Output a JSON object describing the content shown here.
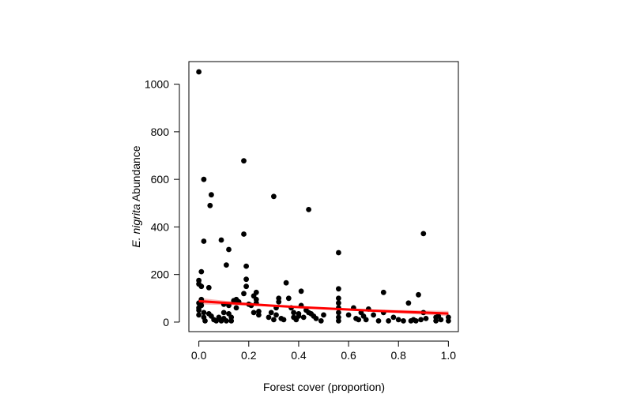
{
  "chart_data": {
    "type": "scatter",
    "title": "",
    "xlabel": "Forest cover (proportion)",
    "ylabel_italic": "E. nigrita",
    "ylabel_rest": " Abundance",
    "xlim": [
      -0.04,
      1.04
    ],
    "ylim": [
      -40,
      1095
    ],
    "xticks": [
      0.0,
      0.2,
      0.4,
      0.6,
      0.8,
      1.0
    ],
    "xtick_labels": [
      "0.0",
      "0.2",
      "0.4",
      "0.6",
      "0.8",
      "1.0"
    ],
    "yticks": [
      0,
      200,
      400,
      600,
      800,
      1000
    ],
    "ytick_labels": [
      "0",
      "200",
      "400",
      "600",
      "800",
      "1000"
    ],
    "grid": false,
    "point_color": "#000000",
    "fit_color": "#ff0000",
    "band_color": "#f4a3a3",
    "fit_line": {
      "x": [
        0.0,
        0.1,
        0.2,
        0.3,
        0.4,
        0.5,
        0.6,
        0.7,
        0.8,
        0.9,
        1.0
      ],
      "y": [
        88,
        81,
        75,
        69,
        63,
        58,
        53,
        48,
        44,
        40,
        36
      ],
      "lower": [
        74,
        72,
        69,
        65,
        60,
        55,
        49,
        43,
        37,
        31,
        25
      ],
      "upper": [
        102,
        90,
        81,
        73,
        66,
        61,
        57,
        53,
        51,
        49,
        47
      ]
    },
    "points": [
      [
        0.0,
        1052
      ],
      [
        0.0,
        175
      ],
      [
        0.0,
        160
      ],
      [
        0.0,
        80
      ],
      [
        0.0,
        60
      ],
      [
        0.0,
        50
      ],
      [
        0.0,
        30
      ],
      [
        0.01,
        212
      ],
      [
        0.01,
        150
      ],
      [
        0.01,
        95
      ],
      [
        0.01,
        85
      ],
      [
        0.01,
        70
      ],
      [
        0.02,
        600
      ],
      [
        0.02,
        340
      ],
      [
        0.02,
        40
      ],
      [
        0.02,
        20
      ],
      [
        0.025,
        5
      ],
      [
        0.04,
        145
      ],
      [
        0.04,
        35
      ],
      [
        0.045,
        490
      ],
      [
        0.05,
        535
      ],
      [
        0.05,
        25
      ],
      [
        0.06,
        10
      ],
      [
        0.07,
        5
      ],
      [
        0.08,
        20
      ],
      [
        0.09,
        345
      ],
      [
        0.09,
        5
      ],
      [
        0.1,
        75
      ],
      [
        0.1,
        40
      ],
      [
        0.1,
        15
      ],
      [
        0.11,
        240
      ],
      [
        0.11,
        5
      ],
      [
        0.12,
        305
      ],
      [
        0.12,
        70
      ],
      [
        0.12,
        35
      ],
      [
        0.13,
        20
      ],
      [
        0.13,
        5
      ],
      [
        0.14,
        90
      ],
      [
        0.15,
        95
      ],
      [
        0.15,
        60
      ],
      [
        0.16,
        85
      ],
      [
        0.18,
        678
      ],
      [
        0.18,
        370
      ],
      [
        0.18,
        120
      ],
      [
        0.19,
        235
      ],
      [
        0.19,
        180
      ],
      [
        0.19,
        150
      ],
      [
        0.2,
        75
      ],
      [
        0.21,
        70
      ],
      [
        0.22,
        110
      ],
      [
        0.22,
        40
      ],
      [
        0.23,
        125
      ],
      [
        0.23,
        95
      ],
      [
        0.23,
        80
      ],
      [
        0.24,
        45
      ],
      [
        0.24,
        30
      ],
      [
        0.28,
        20
      ],
      [
        0.29,
        40
      ],
      [
        0.3,
        528
      ],
      [
        0.3,
        10
      ],
      [
        0.31,
        60
      ],
      [
        0.31,
        30
      ],
      [
        0.32,
        100
      ],
      [
        0.32,
        85
      ],
      [
        0.33,
        15
      ],
      [
        0.34,
        10
      ],
      [
        0.35,
        165
      ],
      [
        0.36,
        100
      ],
      [
        0.37,
        60
      ],
      [
        0.38,
        40
      ],
      [
        0.38,
        20
      ],
      [
        0.39,
        10
      ],
      [
        0.4,
        35
      ],
      [
        0.4,
        25
      ],
      [
        0.41,
        130
      ],
      [
        0.41,
        70
      ],
      [
        0.42,
        20
      ],
      [
        0.43,
        50
      ],
      [
        0.44,
        473
      ],
      [
        0.44,
        40
      ],
      [
        0.45,
        35
      ],
      [
        0.46,
        25
      ],
      [
        0.47,
        15
      ],
      [
        0.49,
        5
      ],
      [
        0.5,
        30
      ],
      [
        0.56,
        292
      ],
      [
        0.56,
        140
      ],
      [
        0.56,
        100
      ],
      [
        0.56,
        80
      ],
      [
        0.56,
        60
      ],
      [
        0.56,
        40
      ],
      [
        0.56,
        20
      ],
      [
        0.56,
        5
      ],
      [
        0.6,
        30
      ],
      [
        0.62,
        60
      ],
      [
        0.63,
        15
      ],
      [
        0.64,
        10
      ],
      [
        0.65,
        40
      ],
      [
        0.66,
        25
      ],
      [
        0.67,
        10
      ],
      [
        0.68,
        55
      ],
      [
        0.7,
        30
      ],
      [
        0.72,
        5
      ],
      [
        0.74,
        125
      ],
      [
        0.74,
        40
      ],
      [
        0.76,
        5
      ],
      [
        0.78,
        20
      ],
      [
        0.8,
        10
      ],
      [
        0.82,
        5
      ],
      [
        0.84,
        80
      ],
      [
        0.85,
        5
      ],
      [
        0.86,
        10
      ],
      [
        0.87,
        5
      ],
      [
        0.88,
        115
      ],
      [
        0.89,
        10
      ],
      [
        0.9,
        372
      ],
      [
        0.9,
        40
      ],
      [
        0.91,
        15
      ],
      [
        0.95,
        5
      ],
      [
        0.95,
        20
      ],
      [
        0.96,
        25
      ],
      [
        0.97,
        10
      ],
      [
        1.0,
        5
      ],
      [
        1.0,
        20
      ]
    ]
  }
}
